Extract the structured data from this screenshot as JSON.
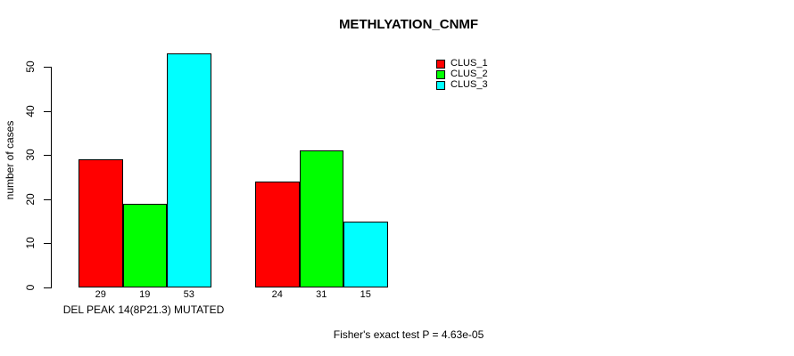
{
  "title": "METHLYATION_CNMF",
  "footer": "Fisher's exact test P = 4.63e-05",
  "chart_data": {
    "type": "bar",
    "title": "METHLYATION_CNMF",
    "categories": [
      "DEL PEAK 14(8P21.3) MUTATED",
      ""
    ],
    "series": [
      {
        "name": "CLUS_1",
        "color": "#ff0000",
        "values": [
          29,
          24
        ]
      },
      {
        "name": "CLUS_2",
        "color": "#00ff00",
        "values": [
          19,
          31
        ]
      },
      {
        "name": "CLUS_3",
        "color": "#00ffff",
        "values": [
          53,
          15
        ]
      }
    ],
    "xlabel": "",
    "ylabel": "number of cases",
    "ylim": [
      0,
      53
    ],
    "yticks": [
      0,
      10,
      20,
      30,
      40,
      50
    ],
    "bar_value_labels": [
      [
        29,
        19,
        53
      ],
      [
        24,
        31,
        15
      ]
    ],
    "bar_border_color": "#000000",
    "grid": false,
    "legend_position": "top-right",
    "annotation": "Fisher's exact test P = 4.63e-05"
  }
}
